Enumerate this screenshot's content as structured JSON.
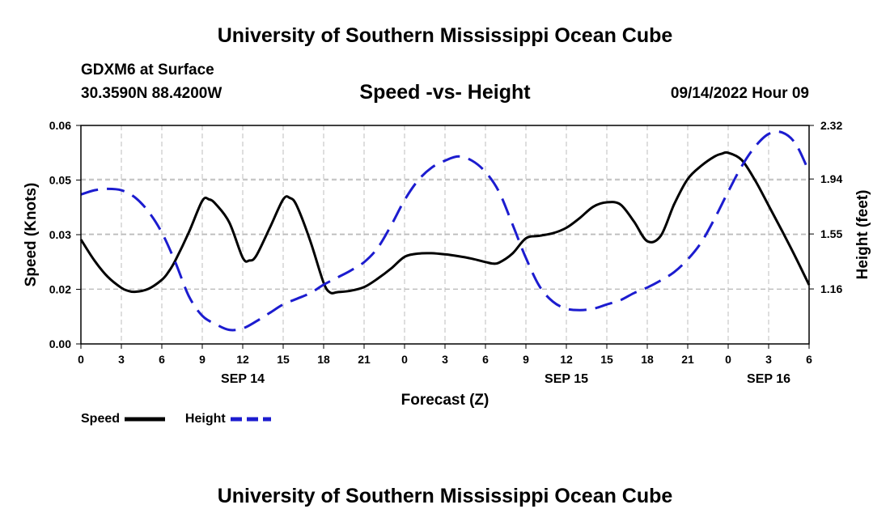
{
  "page": {
    "top_title": "University of Southern Mississippi Ocean Cube",
    "bottom_title": "University of Southern Mississippi Ocean Cube",
    "station": "GDXM6 at Surface",
    "coords": "30.3590N  88.4200W",
    "subtitle": "Speed -vs- Height",
    "datetime": "09/14/2022 Hour 09"
  },
  "chart_data": {
    "type": "line",
    "title": "Speed -vs- Height",
    "xlabel": "Forecast (Z)",
    "ylabel": "Speed (Knots)",
    "y2label": "Height (feet)",
    "xlim": [
      0,
      54
    ],
    "ylim": [
      0,
      0.06
    ],
    "y2lim": [
      0.77,
      2.32
    ],
    "x_tick_values": [
      0,
      3,
      6,
      9,
      12,
      15,
      18,
      21,
      24,
      27,
      30,
      33,
      36,
      39,
      42,
      45,
      48,
      51,
      54
    ],
    "x_tick_labels": [
      "0",
      "3",
      "6",
      "9",
      "12",
      "15",
      "18",
      "21",
      "0",
      "3",
      "6",
      "9",
      "12",
      "15",
      "18",
      "21",
      "0",
      "3",
      "6"
    ],
    "date_labels": [
      {
        "x": 12,
        "label": "SEP 14"
      },
      {
        "x": 36,
        "label": "SEP 15"
      },
      {
        "x": 51,
        "label": "SEP 16"
      }
    ],
    "y_tick_values": [
      0,
      0.015,
      0.03,
      0.045,
      0.06
    ],
    "y_tick_labels": [
      "0.00",
      "0.02",
      "0.03",
      "0.05",
      "0.06"
    ],
    "y2_tick_values": [
      1.16,
      1.55,
      1.94,
      2.32
    ],
    "y2_tick_labels": [
      "1.16",
      "1.55",
      "1.94",
      "2.32"
    ],
    "grid": true,
    "series": [
      {
        "name": "Speed",
        "axis": "left",
        "color": "#000000",
        "dash": "solid",
        "x": [
          0,
          1,
          2,
          3,
          3.5,
          4,
          5,
          6,
          6.5,
          7,
          8,
          9,
          9.5,
          10,
          11,
          12,
          12.5,
          13,
          14,
          15,
          15.5,
          16,
          17,
          18,
          18.5,
          19,
          20,
          21,
          22,
          23,
          24,
          25,
          26,
          27,
          28,
          29,
          30,
          30.5,
          31,
          32,
          33,
          34,
          35,
          36,
          37,
          38,
          39,
          40,
          41,
          42,
          43,
          44,
          45,
          46,
          47,
          47.5,
          48,
          49,
          50,
          51,
          52,
          53,
          54
        ],
        "values": [
          0.0287,
          0.0229,
          0.0184,
          0.0154,
          0.0146,
          0.0143,
          0.0151,
          0.0176,
          0.0198,
          0.0229,
          0.0306,
          0.0393,
          0.0397,
          0.0384,
          0.0334,
          0.0237,
          0.0229,
          0.0242,
          0.0318,
          0.0397,
          0.0401,
          0.038,
          0.0284,
          0.0168,
          0.0141,
          0.0142,
          0.0146,
          0.0156,
          0.0179,
          0.0207,
          0.0239,
          0.0248,
          0.0249,
          0.0246,
          0.0241,
          0.0234,
          0.0225,
          0.0221,
          0.0223,
          0.0248,
          0.029,
          0.0297,
          0.0304,
          0.0319,
          0.0346,
          0.0377,
          0.0389,
          0.0383,
          0.0337,
          0.0282,
          0.0297,
          0.0384,
          0.0453,
          0.0489,
          0.0515,
          0.0522,
          0.0525,
          0.0505,
          0.0449,
          0.038,
          0.031,
          0.0238,
          0.0162
        ]
      },
      {
        "name": "Height",
        "axis": "right",
        "color": "#1c1ccf",
        "dash": "dashed",
        "x": [
          0,
          1,
          2,
          3,
          4,
          5,
          6,
          7,
          8,
          9,
          10,
          11,
          12,
          13,
          14,
          15,
          16,
          17,
          18,
          19,
          20,
          21,
          22,
          23,
          24,
          25,
          26,
          27,
          28,
          29,
          30,
          31,
          32,
          33,
          34,
          35,
          36,
          37,
          38,
          39,
          40,
          41,
          42,
          43,
          44,
          45,
          46,
          47,
          48,
          49,
          50,
          51,
          52,
          53,
          54
        ],
        "values": [
          1.83,
          1.86,
          1.87,
          1.86,
          1.81,
          1.71,
          1.56,
          1.35,
          1.11,
          0.97,
          0.91,
          0.87,
          0.88,
          0.93,
          0.99,
          1.05,
          1.09,
          1.13,
          1.19,
          1.24,
          1.29,
          1.35,
          1.45,
          1.61,
          1.79,
          1.93,
          2.02,
          2.07,
          2.1,
          2.07,
          1.99,
          1.85,
          1.62,
          1.38,
          1.18,
          1.07,
          1.02,
          1.01,
          1.02,
          1.05,
          1.08,
          1.13,
          1.17,
          1.22,
          1.28,
          1.37,
          1.49,
          1.66,
          1.85,
          2.03,
          2.17,
          2.26,
          2.27,
          2.19,
          1.99
        ]
      }
    ]
  }
}
